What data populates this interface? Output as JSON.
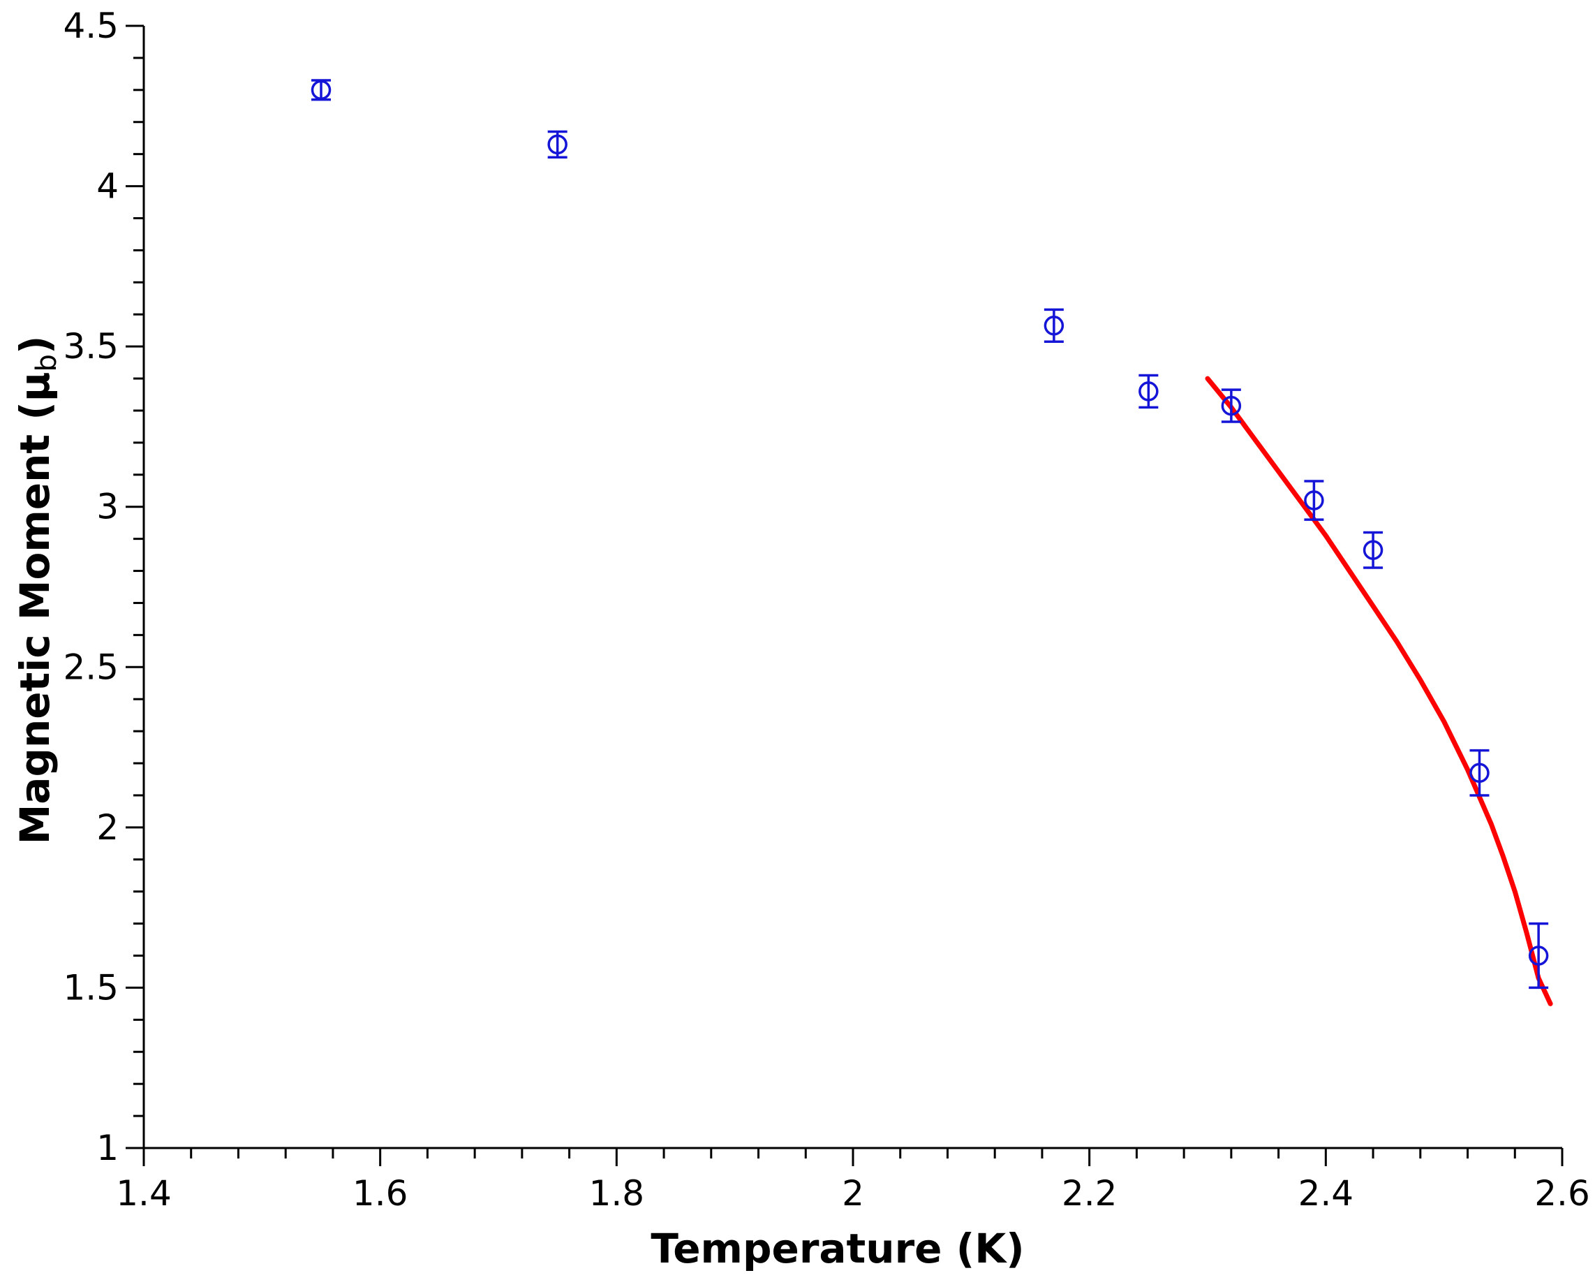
{
  "chart_data": {
    "type": "scatter",
    "title": "",
    "xlabel": "Temperature (K)",
    "ylabel": "Magnetic Moment (μb)",
    "ylabel_main": "Magnetic Moment (μ",
    "ylabel_sub": "b",
    "ylabel_close": ")",
    "xlim": [
      1.4,
      2.6
    ],
    "ylim": [
      1,
      4.5
    ],
    "x_major_ticks": [
      1.4,
      1.6,
      1.8,
      2,
      2.2,
      2.4,
      2.6
    ],
    "x_tick_labels": [
      "1.4",
      "1.6",
      "1.8",
      "2",
      "2.2",
      "2.4",
      "2.6"
    ],
    "x_minor_step": 0.04,
    "y_major_ticks": [
      1,
      1.5,
      2,
      2.5,
      3,
      3.5,
      4,
      4.5
    ],
    "y_tick_labels": [
      "1",
      "1.5",
      "2",
      "2.5",
      "3",
      "3.5",
      "4",
      "4.5"
    ],
    "y_minor_step": 0.1,
    "grid": false,
    "series": [
      {
        "kind": "points-with-errorbars",
        "marker": "open-circle",
        "color": "#1515d8",
        "x": [
          1.55,
          1.75,
          2.17,
          2.25,
          2.32,
          2.39,
          2.44,
          2.53,
          2.58
        ],
        "y": [
          4.3,
          4.13,
          3.565,
          3.36,
          3.315,
          3.02,
          2.865,
          2.17,
          1.6
        ],
        "yerr": [
          0.03,
          0.04,
          0.05,
          0.05,
          0.05,
          0.06,
          0.055,
          0.07,
          0.1
        ]
      },
      {
        "kind": "fit-line",
        "color": "#ff0000",
        "x": [
          2.3,
          2.32,
          2.34,
          2.36,
          2.38,
          2.4,
          2.42,
          2.44,
          2.46,
          2.48,
          2.5,
          2.52,
          2.54,
          2.55,
          2.56,
          2.57,
          2.58,
          2.59
        ],
        "y": [
          3.4,
          3.31,
          3.21,
          3.11,
          3.01,
          2.91,
          2.8,
          2.69,
          2.58,
          2.46,
          2.33,
          2.18,
          2.01,
          1.91,
          1.8,
          1.67,
          1.53,
          1.45
        ]
      }
    ]
  }
}
